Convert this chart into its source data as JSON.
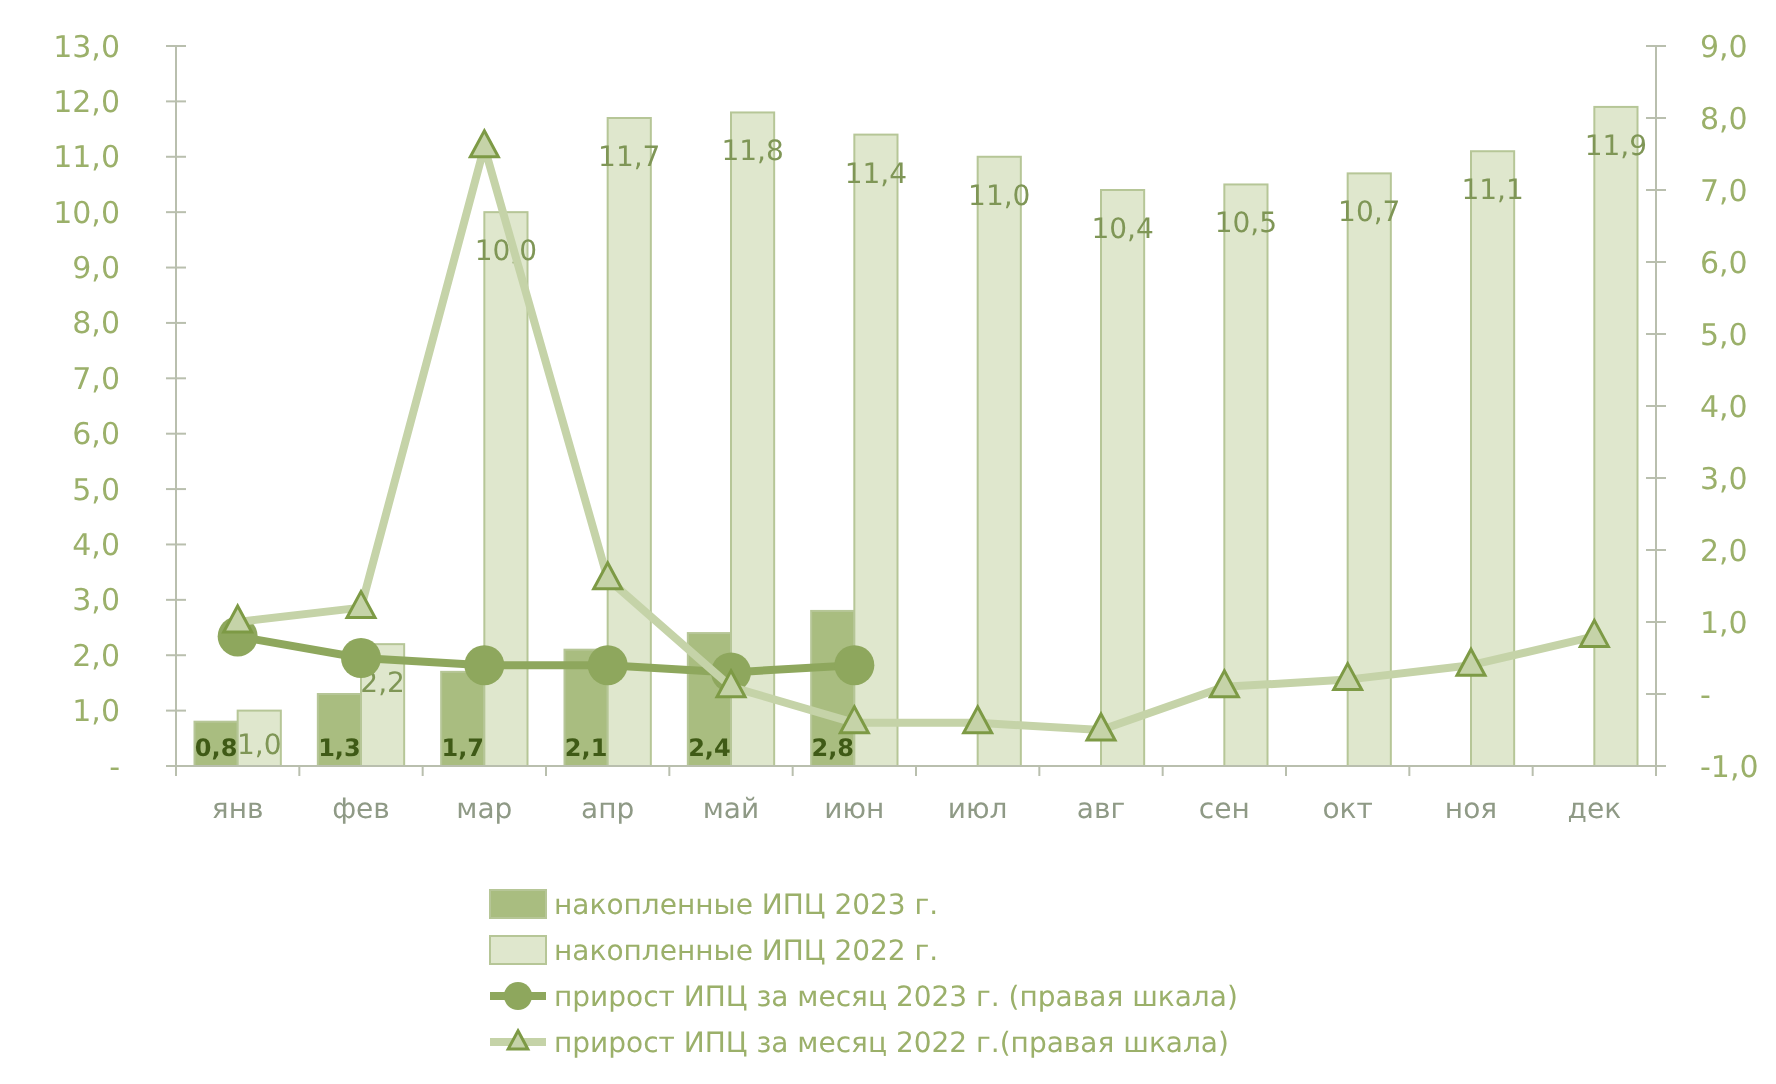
{
  "chart_data": {
    "type": "bar",
    "categories": [
      "янв",
      "фев",
      "мар",
      "апр",
      "май",
      "июн",
      "июл",
      "авг",
      "сен",
      "окт",
      "ноя",
      "дек"
    ],
    "series": [
      {
        "name": "накопленные ИПЦ 2023 г.",
        "color": "#a9bd80",
        "values": [
          0.8,
          1.3,
          1.7,
          2.1,
          2.4,
          2.8,
          null,
          null,
          null,
          null,
          null,
          null
        ],
        "value_labels": [
          "0,8",
          "1,3",
          "1,7",
          "2,1",
          "2,4",
          "2,8",
          null,
          null,
          null,
          null,
          null,
          null
        ]
      },
      {
        "name": "накопленные ИПЦ 2022 г.",
        "color": "#dfe7cd",
        "values": [
          1.0,
          2.2,
          10.0,
          11.7,
          11.8,
          11.4,
          11.0,
          10.4,
          10.5,
          10.7,
          11.1,
          11.9
        ],
        "value_labels": [
          "1,0",
          "2,2",
          "10,0",
          "11,7",
          "11,8",
          "11,4",
          "11,0",
          "10,4",
          "10,5",
          "10,7",
          "11,1",
          "11,9"
        ]
      },
      {
        "name": "прирост ИПЦ за месяц 2023 г. (правая шкала)",
        "type": "line",
        "axis": "y2",
        "marker": "circle",
        "color": "#8ea75d",
        "values": [
          0.8,
          0.5,
          0.4,
          0.4,
          0.3,
          0.4,
          null,
          null,
          null,
          null,
          null,
          null
        ]
      },
      {
        "name": "прирост ИПЦ за месяц 2022 г.(правая шкала)",
        "type": "line",
        "axis": "y2",
        "marker": "triangle",
        "color": "#c5d3a8",
        "values": [
          1.0,
          1.2,
          7.6,
          1.6,
          0.1,
          -0.4,
          -0.4,
          -0.5,
          0.1,
          0.2,
          0.4,
          0.8
        ]
      }
    ],
    "ylim": [
      0,
      13
    ],
    "yticks": [
      {
        "value": 0,
        "label": "-"
      },
      {
        "value": 1,
        "label": "1,0"
      },
      {
        "value": 2,
        "label": "2,0"
      },
      {
        "value": 3,
        "label": "3,0"
      },
      {
        "value": 4,
        "label": "4,0"
      },
      {
        "value": 5,
        "label": "5,0"
      },
      {
        "value": 6,
        "label": "6,0"
      },
      {
        "value": 7,
        "label": "7,0"
      },
      {
        "value": 8,
        "label": "8,0"
      },
      {
        "value": 9,
        "label": "9,0"
      },
      {
        "value": 10,
        "label": "10,0"
      },
      {
        "value": 11,
        "label": "11,0"
      },
      {
        "value": 12,
        "label": "12,0"
      },
      {
        "value": 13,
        "label": "13,0"
      }
    ],
    "y2lim": [
      -1,
      9
    ],
    "y2ticks": [
      {
        "value": -1,
        "label": "-1,0"
      },
      {
        "value": 0,
        "label": "-"
      },
      {
        "value": 1,
        "label": "1,0"
      },
      {
        "value": 2,
        "label": "2,0"
      },
      {
        "value": 3,
        "label": "3,0"
      },
      {
        "value": 4,
        "label": "4,0"
      },
      {
        "value": 5,
        "label": "5,0"
      },
      {
        "value": 6,
        "label": "6,0"
      },
      {
        "value": 7,
        "label": "7,0"
      },
      {
        "value": 8,
        "label": "8,0"
      },
      {
        "value": 9,
        "label": "9,0"
      }
    ],
    "legend": "bottom"
  }
}
